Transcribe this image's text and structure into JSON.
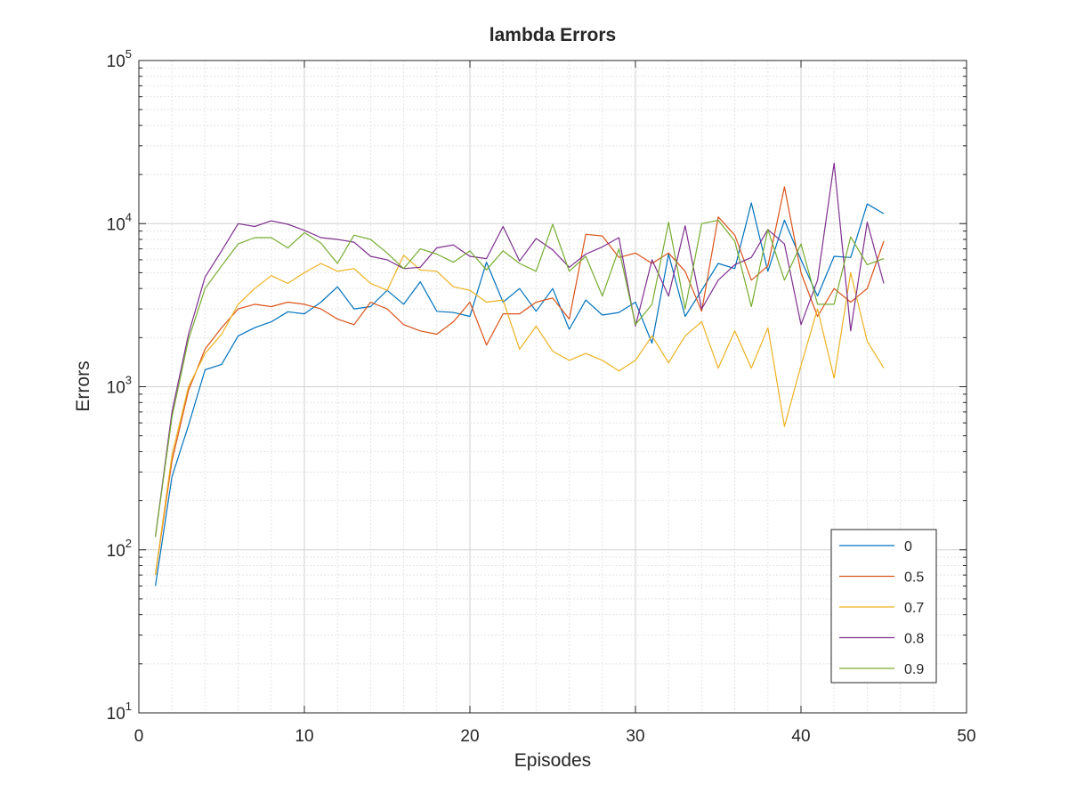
{
  "chart_data": {
    "type": "line",
    "title": "lambda Errors",
    "xlabel": "Episodes",
    "ylabel": "Errors",
    "xlim": [
      0,
      50
    ],
    "ylim": [
      10,
      100000
    ],
    "yscale": "log",
    "grid": true,
    "minor_grid": true,
    "legend_position": "bottom-right",
    "x_ticks": [
      0,
      10,
      20,
      30,
      40,
      50
    ],
    "x_tick_labels": [
      "0",
      "10",
      "20",
      "30",
      "40",
      "50"
    ],
    "y_ticks": [
      10,
      100,
      1000,
      10000,
      100000
    ],
    "y_tick_labels": [
      {
        "base": "10",
        "exp": "1"
      },
      {
        "base": "10",
        "exp": "2"
      },
      {
        "base": "10",
        "exp": "3"
      },
      {
        "base": "10",
        "exp": "4"
      },
      {
        "base": "10",
        "exp": "5"
      }
    ],
    "x": [
      1,
      2,
      3,
      4,
      5,
      6,
      7,
      8,
      9,
      10,
      11,
      12,
      13,
      14,
      15,
      16,
      17,
      18,
      19,
      20,
      21,
      22,
      23,
      24,
      25,
      26,
      27,
      28,
      29,
      30,
      31,
      32,
      33,
      34,
      35,
      36,
      37,
      38,
      39,
      40,
      41,
      42,
      43,
      44,
      45
    ],
    "series": [
      {
        "name": "0",
        "color": "#0072BD",
        "values": [
          60,
          280,
          580,
          1270,
          1370,
          2050,
          2300,
          2500,
          2880,
          2800,
          3300,
          4100,
          3000,
          3100,
          3900,
          3200,
          4400,
          2900,
          2850,
          2700,
          5800,
          3300,
          4000,
          2900,
          4000,
          2250,
          3400,
          2750,
          2850,
          3300,
          1850,
          6500,
          2700,
          3900,
          5700,
          5300,
          13400,
          5100,
          10500,
          6000,
          3600,
          6300,
          6200,
          13200,
          11500
        ]
      },
      {
        "name": "0.5",
        "color": "#D95319",
        "values": [
          70,
          350,
          950,
          1700,
          2300,
          3000,
          3200,
          3100,
          3300,
          3200,
          3000,
          2600,
          2400,
          3300,
          3000,
          2400,
          2200,
          2100,
          2500,
          3300,
          1800,
          2800,
          2800,
          3300,
          3500,
          2600,
          8600,
          8400,
          6200,
          6600,
          5700,
          6600,
          5100,
          2900,
          11000,
          8500,
          4500,
          5500,
          16800,
          5000,
          2700,
          4000,
          3300,
          4000,
          7800
        ]
      },
      {
        "name": "0.7",
        "color": "#EDB120",
        "values": [
          70,
          380,
          1000,
          1600,
          2100,
          3200,
          4000,
          4800,
          4300,
          5000,
          5700,
          5100,
          5300,
          4300,
          3900,
          6400,
          5200,
          5100,
          4100,
          3900,
          3300,
          3400,
          1700,
          2350,
          1650,
          1450,
          1600,
          1450,
          1250,
          1450,
          2050,
          1400,
          2050,
          2500,
          1300,
          2200,
          1300,
          2300,
          570,
          1350,
          3000,
          1130,
          5000,
          1900,
          1300
        ]
      },
      {
        "name": "0.8",
        "color": "#7E2F8E",
        "values": [
          120,
          700,
          2100,
          4700,
          6800,
          10000,
          9600,
          10400,
          9900,
          9100,
          8200,
          8000,
          7700,
          6300,
          6000,
          5300,
          5400,
          7100,
          7400,
          6300,
          6100,
          9600,
          5900,
          8100,
          6900,
          5400,
          6500,
          7200,
          8200,
          2350,
          6000,
          3600,
          9700,
          3000,
          4500,
          5600,
          6200,
          9200,
          7500,
          2400,
          4500,
          23500,
          2200,
          10200,
          4300
        ]
      },
      {
        "name": "0.9",
        "color": "#77AC30",
        "values": [
          120,
          650,
          1950,
          4000,
          5500,
          7500,
          8200,
          8200,
          7100,
          8800,
          7600,
          5700,
          8500,
          8000,
          6600,
          5300,
          7000,
          6500,
          5800,
          6800,
          5200,
          6800,
          5700,
          5100,
          9900,
          5100,
          6300,
          3600,
          7000,
          2400,
          3200,
          10200,
          3000,
          10000,
          10500,
          7800,
          3100,
          9200,
          4500,
          7500,
          3200,
          3200,
          8300,
          5600,
          6100
        ]
      }
    ]
  }
}
